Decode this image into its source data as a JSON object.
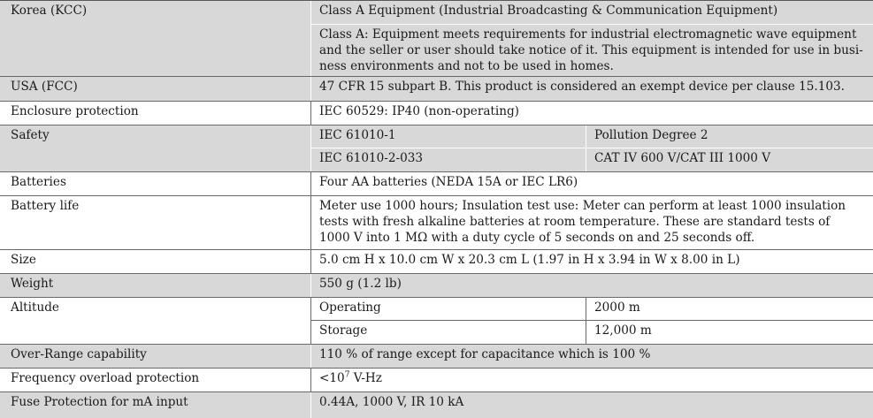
{
  "rows": {
    "korea": {
      "label": "Korea (KCC)",
      "v1": "Class A Equipment (Industrial Broadcasting & Communication Equipment)",
      "v2a": "Class A: Equipment meets requirements for industrial electromagnetic wave equipment",
      "v2b": "and the seller or user should take notice of it. This equipment is intended for use in busi-",
      "v2c": "ness environments and not to be used in homes."
    },
    "usa": {
      "label": "USA (FCC)",
      "v1": "47 CFR 15 subpart B. This product is considered an exempt device per clause 15.103."
    },
    "enclosure": {
      "label": "Enclosure protection",
      "v1": "IEC 60529: IP40 (non-operating)"
    },
    "safety": {
      "label": "Safety",
      "a1": "IEC 61010-1",
      "a2": "Pollution Degree 2",
      "b1": "IEC 61010-2-033",
      "b2": "CAT IV 600 V/CAT III 1000 V"
    },
    "batteries": {
      "label": "Batteries",
      "v1": "Four AA batteries (NEDA 15A or IEC LR6)"
    },
    "battery_life": {
      "label": "Battery life",
      "l1": "Meter use 1000 hours; Insulation test use: Meter can perform at least 1000 insulation",
      "l2": "tests with fresh alkaline batteries at room temperature. These are standard tests of",
      "l3": "1000 V into 1 MΩ with a duty cycle of 5 seconds on and 25 seconds off."
    },
    "size": {
      "label": "Size",
      "v1": "5.0 cm H x 10.0 cm W x 20.3 cm L (1.97 in H x 3.94 in W x 8.00 in L)"
    },
    "weight": {
      "label": "Weight",
      "v1": "550 g (1.2 lb)"
    },
    "altitude": {
      "label": "Altitude",
      "a1": "Operating",
      "a2": "2000 m",
      "b1": "Storage",
      "b2": "12,000 m"
    },
    "overrange": {
      "label": "Over-Range capability",
      "v1": "110 % of range except for capacitance which is 100 %"
    },
    "freq": {
      "label": "Frequency overload protection",
      "v1_base": "<10",
      "v1_sup": "7",
      "v1_unit": " V-Hz"
    },
    "fuse": {
      "label": "Fuse Protection for mA input",
      "v1": "0.44A, 1000 V, IR 10 kA"
    }
  }
}
